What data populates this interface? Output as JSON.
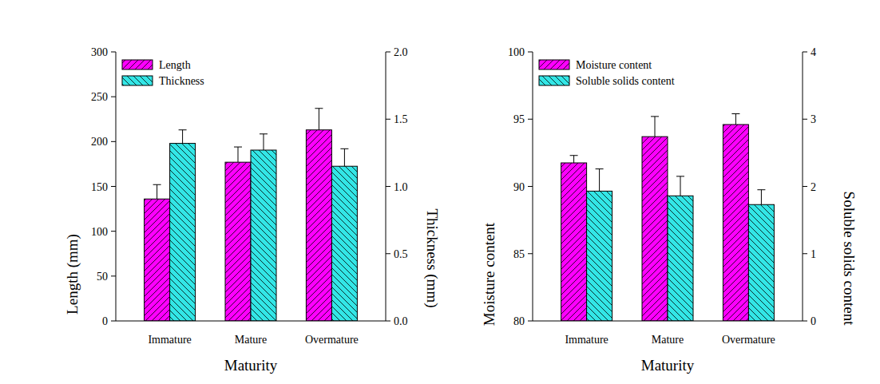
{
  "chart_data": [
    {
      "type": "bar",
      "categories": [
        "Immature",
        "Mature",
        "Overmature"
      ],
      "x_label": "Maturity",
      "y_label": "Length (mm)",
      "y2_label": "Thickness (mm)",
      "ylim": [
        0,
        300
      ],
      "yticks": [
        0,
        50,
        100,
        150,
        200,
        250,
        300
      ],
      "y2lim": [
        0,
        2
      ],
      "y2ticks": [
        {
          "value": 0,
          "label": "0.0"
        },
        0.5,
        {
          "value": 1,
          "label": "1.0"
        },
        1.5,
        {
          "value": 2,
          "label": "2.0"
        }
      ],
      "legend": "upper left",
      "series": [
        {
          "name": "Length",
          "color": "#ff00ff",
          "values": [
            136,
            177,
            213
          ],
          "errors": [
            16,
            17,
            24
          ]
        },
        {
          "name": "Thickness",
          "color": "#33e6e6",
          "axis": "y2",
          "values": [
            1.32,
            1.27,
            1.15
          ],
          "errors": [
            0.1,
            0.12,
            0.13
          ]
        }
      ]
    },
    {
      "type": "bar",
      "categories": [
        "Immature",
        "Mature",
        "Overmature"
      ],
      "x_label": "Maturity",
      "y_label": "Moisture content",
      "y2_label": "Soluble solids content",
      "ylim": [
        80,
        100
      ],
      "yticks": [
        80,
        85,
        90,
        95,
        100
      ],
      "y2lim": [
        0,
        4
      ],
      "y2ticks": [
        0,
        1,
        2,
        3,
        4
      ],
      "legend": "upper left",
      "series": [
        {
          "name": "Moisture content",
          "color": "#ff00ff",
          "values": [
            91.75,
            93.7,
            94.6
          ],
          "errors": [
            0.55,
            1.5,
            0.8
          ]
        },
        {
          "name": "Soluble solids content",
          "color": "#33e6e6",
          "axis": "y2",
          "values": [
            1.93,
            1.86,
            1.73
          ],
          "errors": [
            0.33,
            0.29,
            0.22
          ]
        }
      ]
    }
  ]
}
